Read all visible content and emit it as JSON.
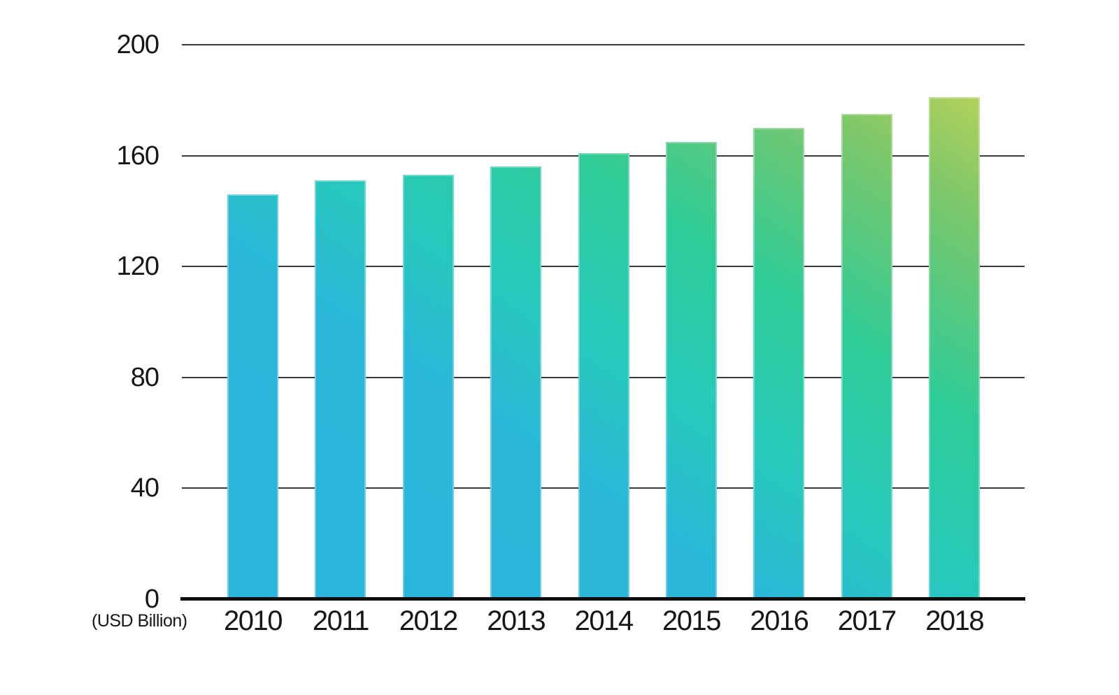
{
  "chart_data": {
    "type": "bar",
    "categories": [
      "2010",
      "2011",
      "2012",
      "2013",
      "2014",
      "2015",
      "2016",
      "2017",
      "2018"
    ],
    "values": [
      146,
      151,
      153,
      156,
      161,
      165,
      170,
      175,
      181
    ],
    "title": "",
    "xlabel": "",
    "ylabel": "(USD Billion)",
    "unit_label": "(USD Billion)",
    "ylim": [
      0,
      200
    ],
    "y_ticks": [
      0,
      40,
      80,
      120,
      160,
      200
    ],
    "grid": true,
    "legend": false,
    "bar_gradient": {
      "direction": "to top right",
      "stops": [
        {
          "color": "#2ab6dd",
          "pos": "0%"
        },
        {
          "color": "#2ab7d9",
          "pos": "35%"
        },
        {
          "color": "#28c9bc",
          "pos": "50%"
        },
        {
          "color": "#2dcc98",
          "pos": "67%"
        },
        {
          "color": "#7cc76a",
          "pos": "88%"
        },
        {
          "color": "#b3d15b",
          "pos": "100%"
        }
      ]
    },
    "colors": {
      "background": "#ffffff",
      "gridline": "#3a3a3a",
      "axis_line": "#0f0f0f",
      "text": "#161616"
    }
  }
}
